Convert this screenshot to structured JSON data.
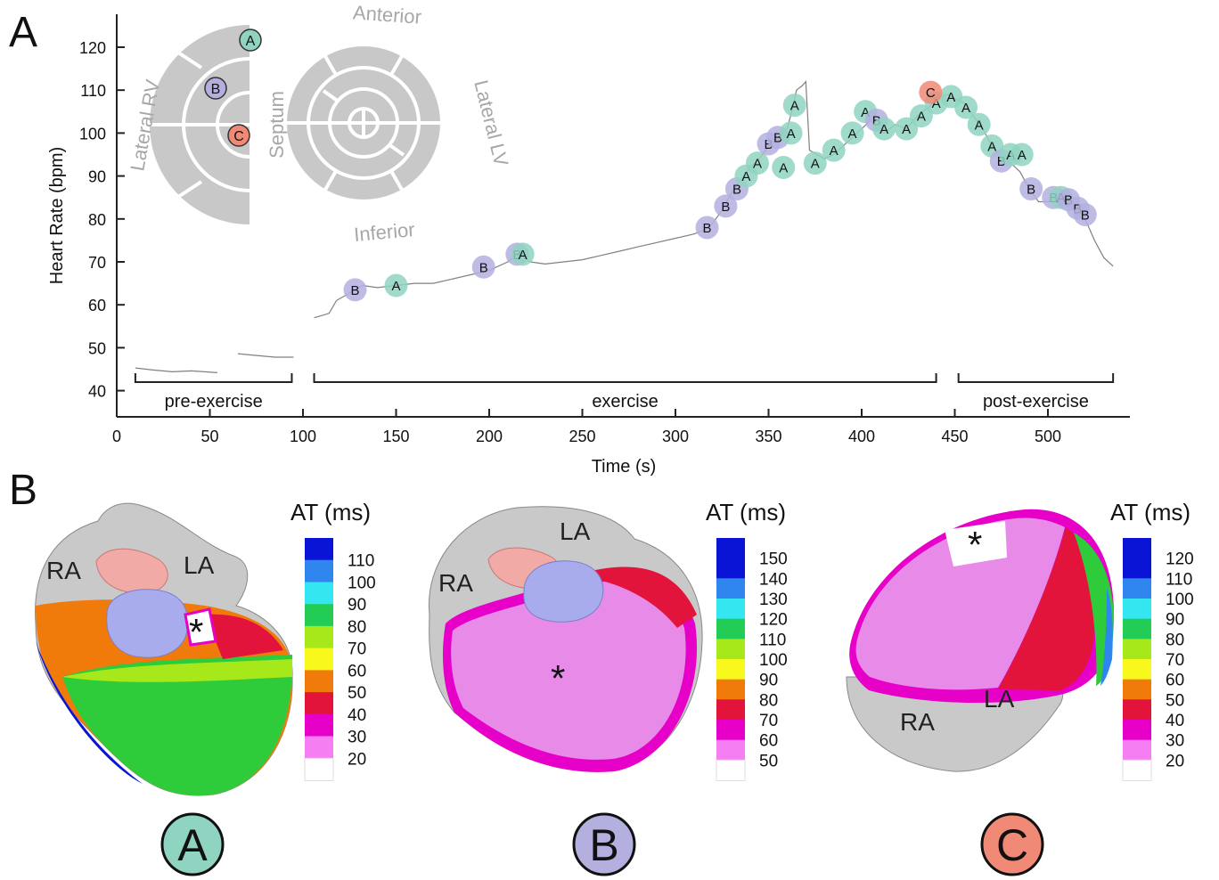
{
  "panels": {
    "a_letter": "A",
    "b_letter": "B"
  },
  "chart_data": {
    "type": "line",
    "title": "",
    "xlabel": "Time (s)",
    "ylabel": "Heart Rate (bpm)",
    "xlim": [
      0,
      540
    ],
    "ylim": [
      38,
      124
    ],
    "xticks": [
      0,
      50,
      100,
      150,
      200,
      250,
      300,
      350,
      400,
      450,
      500
    ],
    "yticks": [
      40,
      50,
      60,
      70,
      80,
      90,
      100,
      110,
      120
    ],
    "grid": false,
    "series": [
      {
        "values": [
          [
            10,
            45.3
          ],
          [
            20,
            44.8
          ],
          [
            30,
            44.4
          ],
          [
            40,
            44.6
          ],
          [
            54,
            44.2
          ]
        ]
      },
      {
        "values": [
          [
            65,
            48.6
          ],
          [
            75,
            48.2
          ],
          [
            85,
            47.8
          ],
          [
            95,
            47.8
          ]
        ]
      },
      {
        "values": [
          [
            106,
            57
          ],
          [
            110,
            57.5
          ],
          [
            114,
            58
          ],
          [
            118,
            61
          ],
          [
            122,
            62
          ],
          [
            126,
            63
          ],
          [
            132,
            64.5
          ],
          [
            140,
            64
          ],
          [
            150,
            64.5
          ],
          [
            160,
            65
          ],
          [
            170,
            65
          ],
          [
            180,
            66
          ],
          [
            190,
            67
          ],
          [
            200,
            68
          ],
          [
            210,
            70
          ],
          [
            216,
            72
          ],
          [
            222,
            70
          ],
          [
            230,
            69.5
          ],
          [
            240,
            70
          ],
          [
            250,
            70.5
          ],
          [
            260,
            71.5
          ],
          [
            270,
            72.5
          ],
          [
            280,
            73.5
          ],
          [
            290,
            74.5
          ],
          [
            300,
            75.5
          ],
          [
            310,
            76.5
          ],
          [
            316,
            77.5
          ],
          [
            320,
            79
          ],
          [
            325,
            82
          ],
          [
            330,
            86
          ],
          [
            335,
            89
          ],
          [
            340,
            92
          ],
          [
            345,
            94
          ],
          [
            350,
            97
          ],
          [
            355,
            99
          ],
          [
            360,
            101
          ],
          [
            363,
            106
          ],
          [
            365,
            110
          ],
          [
            368,
            111
          ],
          [
            370,
            112
          ],
          [
            372,
            96
          ],
          [
            376,
            95
          ],
          [
            380,
            94
          ],
          [
            385,
            95
          ],
          [
            390,
            97
          ],
          [
            395,
            99
          ],
          [
            400,
            101
          ],
          [
            405,
            103
          ],
          [
            408,
            101
          ],
          [
            412,
            100
          ],
          [
            418,
            102
          ],
          [
            424,
            101
          ],
          [
            430,
            104
          ],
          [
            436,
            106
          ],
          [
            440,
            108
          ],
          [
            446,
            109
          ],
          [
            450,
            108
          ],
          [
            455,
            107
          ],
          [
            460,
            104
          ],
          [
            465,
            101
          ],
          [
            470,
            97
          ],
          [
            475,
            94
          ],
          [
            480,
            93
          ],
          [
            485,
            91
          ],
          [
            490,
            87
          ],
          [
            495,
            84
          ],
          [
            500,
            84
          ],
          [
            505,
            85
          ],
          [
            510,
            84
          ],
          [
            515,
            83
          ],
          [
            520,
            80
          ],
          [
            525,
            75
          ],
          [
            530,
            71
          ],
          [
            535,
            69
          ]
        ]
      }
    ],
    "markers": [
      {
        "t": 128,
        "hr": 63.5,
        "label": "B"
      },
      {
        "t": 150,
        "hr": 64.5,
        "label": "A"
      },
      {
        "t": 197,
        "hr": 68.8,
        "label": "B"
      },
      {
        "t": 215,
        "hr": 71.8,
        "label": "B"
      },
      {
        "t": 218,
        "hr": 71.8,
        "label": "A"
      },
      {
        "t": 317,
        "hr": 78,
        "label": "B"
      },
      {
        "t": 327,
        "hr": 83,
        "label": "B"
      },
      {
        "t": 333,
        "hr": 87,
        "label": "B"
      },
      {
        "t": 338,
        "hr": 90,
        "label": "A"
      },
      {
        "t": 344,
        "hr": 93,
        "label": "A"
      },
      {
        "t": 350,
        "hr": 97.5,
        "label": "B"
      },
      {
        "t": 355,
        "hr": 99,
        "label": "B"
      },
      {
        "t": 358,
        "hr": 92,
        "label": "A"
      },
      {
        "t": 362,
        "hr": 100,
        "label": "A"
      },
      {
        "t": 364,
        "hr": 106.5,
        "label": "A"
      },
      {
        "t": 375,
        "hr": 93,
        "label": "A"
      },
      {
        "t": 385,
        "hr": 96,
        "label": "A"
      },
      {
        "t": 395,
        "hr": 100,
        "label": "A"
      },
      {
        "t": 402,
        "hr": 105,
        "label": "A"
      },
      {
        "t": 408,
        "hr": 103,
        "label": "B"
      },
      {
        "t": 412,
        "hr": 101,
        "label": "A"
      },
      {
        "t": 424,
        "hr": 101,
        "label": "A"
      },
      {
        "t": 432,
        "hr": 104,
        "label": "A"
      },
      {
        "t": 440,
        "hr": 107,
        "label": "A"
      },
      {
        "t": 448,
        "hr": 108.5,
        "label": "A"
      },
      {
        "t": 456,
        "hr": 106,
        "label": "A"
      },
      {
        "t": 463,
        "hr": 102,
        "label": "A"
      },
      {
        "t": 470,
        "hr": 97,
        "label": "A"
      },
      {
        "t": 475,
        "hr": 93.5,
        "label": "B"
      },
      {
        "t": 480,
        "hr": 95,
        "label": "A"
      },
      {
        "t": 486,
        "hr": 95,
        "label": "A"
      },
      {
        "t": 491,
        "hr": 87,
        "label": "B"
      },
      {
        "t": 503,
        "hr": 85,
        "label": "B"
      },
      {
        "t": 507,
        "hr": 85,
        "label": "A"
      },
      {
        "t": 511,
        "hr": 84.5,
        "label": "B"
      },
      {
        "t": 516,
        "hr": 82.5,
        "label": "B"
      },
      {
        "t": 520,
        "hr": 81,
        "label": "B"
      },
      {
        "t": 437,
        "hr": 109.5,
        "label": "C"
      }
    ],
    "phases": [
      {
        "label": "pre-exercise",
        "start": 10,
        "end": 94
      },
      {
        "label": "exercise",
        "start": 106,
        "end": 440
      },
      {
        "label": "post-exercise",
        "start": 452,
        "end": 535
      }
    ],
    "bullseye": {
      "anterior": "Anterior",
      "inferior": "Inferior",
      "septum": "Septum",
      "lateral_lv": "Lateral LV",
      "lateral_rv": "Lateral RV",
      "markers": [
        "A",
        "B",
        "C"
      ]
    },
    "colors": {
      "A": "#8fd3c1",
      "B": "#b3b0e0",
      "C": "#f08a77",
      "segment": "#c8c8c8",
      "trace": "#808080"
    }
  },
  "maps": [
    {
      "circle_label": "A",
      "circle_color": "#8fd3c1",
      "scale_title": "AT (ms)",
      "scale_values": [
        "110",
        "100",
        "90",
        "80",
        "70",
        "60",
        "50",
        "40",
        "30",
        "20"
      ],
      "chamber_labels": [
        "RA",
        "LA"
      ],
      "star": "*"
    },
    {
      "circle_label": "B",
      "circle_color": "#b3b0e0",
      "scale_title": "AT (ms)",
      "scale_values": [
        "150",
        "140",
        "130",
        "120",
        "110",
        "100",
        "90",
        "80",
        "70",
        "60",
        "50"
      ],
      "chamber_labels": [
        "RA",
        "LA"
      ],
      "star": "*"
    },
    {
      "circle_label": "C",
      "circle_color": "#f08a77",
      "scale_title": "AT (ms)",
      "scale_values": [
        "120",
        "110",
        "100",
        "90",
        "80",
        "70",
        "60",
        "50",
        "40",
        "30",
        "20"
      ],
      "chamber_labels": [
        "RA",
        "LA"
      ],
      "star": "*"
    }
  ],
  "colorbar_palette": [
    "#0a14d6",
    "#2f86ee",
    "#33e6f0",
    "#22cc55",
    "#a6e81a",
    "#f8f81c",
    "#f07a0a",
    "#e2143c",
    "#e600c8",
    "#f57ef3",
    "#ffffff"
  ]
}
